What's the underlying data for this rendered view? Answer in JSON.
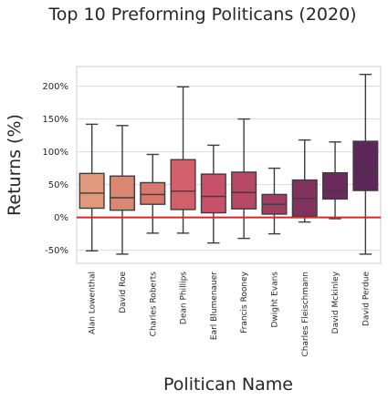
{
  "chart_data": {
    "type": "box",
    "title": "Top 10 Preforming Politicans (2020)",
    "xlabel": "Politican Name",
    "ylabel": "Returns (%)",
    "ylim": [
      -70,
      230
    ],
    "yticks": [
      -50,
      0,
      50,
      100,
      150,
      200
    ],
    "ytick_labels": [
      "-50%",
      "0%",
      "50%",
      "100%",
      "150%",
      "200%"
    ],
    "grid": true,
    "reference_line": {
      "y": 0,
      "color": "#d62728"
    },
    "categories": [
      "Alan Lowenthal",
      "David Roe",
      "Charles Roberts",
      "Dean Phillips",
      "Earl Blumenauer",
      "Francis Rooney",
      "Dwight Evans",
      "Charles Fleischmann",
      "David Mckinley",
      "David Perdue"
    ],
    "colors": [
      "#e0997a",
      "#dc8672",
      "#d9776d",
      "#d1606b",
      "#c65168",
      "#b84966",
      "#9e3e63",
      "#82325f",
      "#6b2a5c",
      "#5a2757"
    ],
    "boxes": [
      {
        "whislo": -51,
        "q1": 14,
        "med": 37,
        "q3": 67,
        "whishi": 142
      },
      {
        "whislo": -56,
        "q1": 11,
        "med": 30,
        "q3": 63,
        "whishi": 140
      },
      {
        "whislo": -24,
        "q1": 20,
        "med": 35,
        "q3": 53,
        "whishi": 96
      },
      {
        "whislo": -24,
        "q1": 12,
        "med": 40,
        "q3": 88,
        "whishi": 199
      },
      {
        "whislo": -39,
        "q1": 7,
        "med": 32,
        "q3": 66,
        "whishi": 110
      },
      {
        "whislo": -32,
        "q1": 13,
        "med": 38,
        "q3": 69,
        "whishi": 150
      },
      {
        "whislo": -25,
        "q1": 5,
        "med": 20,
        "q3": 35,
        "whishi": 75
      },
      {
        "whislo": -7,
        "q1": 2,
        "med": 29,
        "q3": 57,
        "whishi": 118
      },
      {
        "whislo": -2,
        "q1": 28,
        "med": 40,
        "q3": 68,
        "whishi": 115
      },
      {
        "whislo": -56,
        "q1": 41,
        "med": 70,
        "q3": 116,
        "whishi": 218
      }
    ]
  }
}
